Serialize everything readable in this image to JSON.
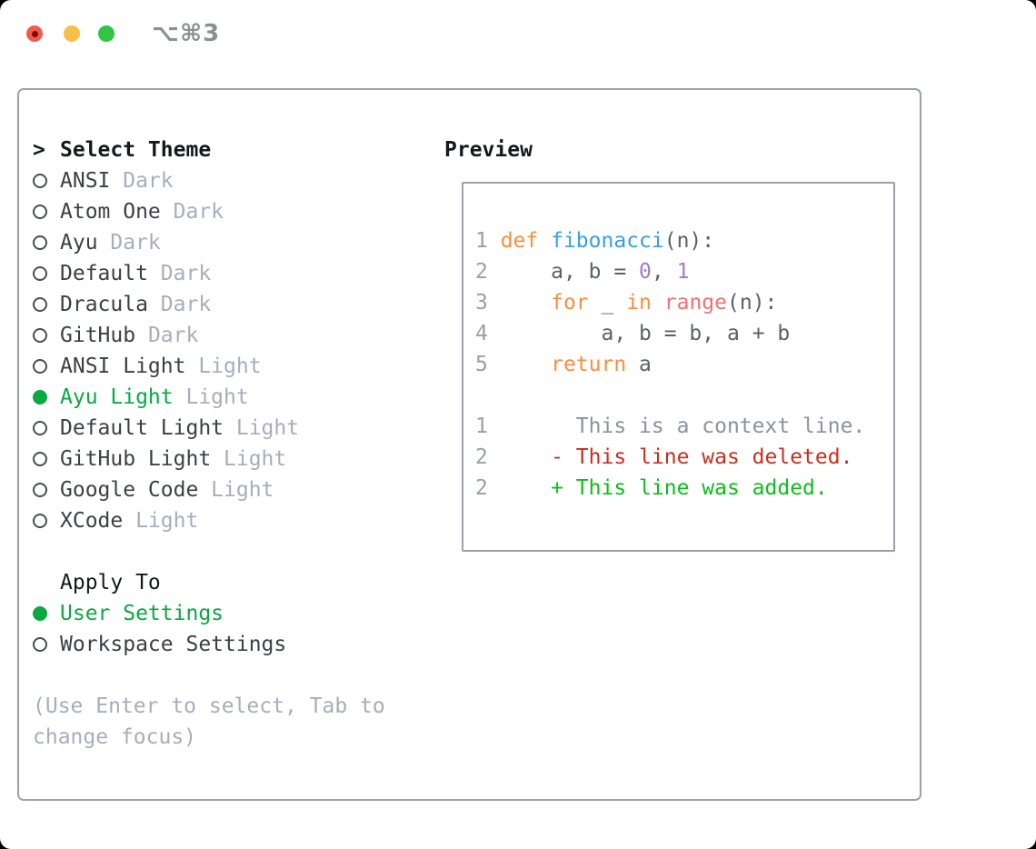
{
  "window": {
    "shortcut_label": "⌥⌘3"
  },
  "colors": {
    "tl_red": "#f05a50",
    "tl_red_dot": "#7d0c04",
    "tl_yellow": "#f5bf4a",
    "tl_green": "#30c546",
    "shortcut_gray": "#8c8f93",
    "border_gray": "#9aa2b0",
    "ring_gray": "#474d55",
    "heading_black": "#15181c",
    "text_dark": "#3b4048",
    "muted_gray": "#a6aebc",
    "accent_green": "#0ca843",
    "line_number_gray": "#96a0ab",
    "keyword_orange": "#fa8d3e",
    "function_blue": "#399ee6",
    "number_purple": "#a37acc",
    "builtin_coral": "#f07171",
    "code_plain": "#5c6166",
    "context_gray": "#8a939e",
    "deleted_red": "#c92f1f",
    "added_green": "#0cbf1c"
  },
  "theme_picker": {
    "prompt": ">",
    "title": "Select Theme",
    "items": [
      {
        "name": "ANSI",
        "variant": "Dark",
        "selected": false
      },
      {
        "name": "Atom One",
        "variant": "Dark",
        "selected": false
      },
      {
        "name": "Ayu",
        "variant": "Dark",
        "selected": false
      },
      {
        "name": "Default",
        "variant": "Dark",
        "selected": false
      },
      {
        "name": "Dracula",
        "variant": "Dark",
        "selected": false
      },
      {
        "name": "GitHub",
        "variant": "Dark",
        "selected": false
      },
      {
        "name": "ANSI Light",
        "variant": "Light",
        "selected": false
      },
      {
        "name": "Ayu Light",
        "variant": "Light",
        "selected": true
      },
      {
        "name": "Default Light",
        "variant": "Light",
        "selected": false
      },
      {
        "name": "GitHub Light",
        "variant": "Light",
        "selected": false
      },
      {
        "name": "Google Code",
        "variant": "Light",
        "selected": false
      },
      {
        "name": "XCode",
        "variant": "Light",
        "selected": false
      }
    ],
    "apply_to": {
      "label": "Apply To",
      "options": [
        {
          "label": "User Settings",
          "selected": true
        },
        {
          "label": "Workspace Settings",
          "selected": false
        }
      ]
    },
    "hint": "(Use Enter to select, Tab to change focus)"
  },
  "preview": {
    "title": "Preview",
    "lines": [
      {
        "segments": [
          {
            "c": "ln",
            "t": "1 "
          },
          {
            "c": "kw",
            "t": "def"
          },
          {
            "c": "pl",
            "t": " "
          },
          {
            "c": "fn",
            "t": "fibonacci"
          },
          {
            "c": "pl",
            "t": "(n):"
          }
        ]
      },
      {
        "segments": [
          {
            "c": "ln",
            "t": "2 "
          },
          {
            "c": "pl",
            "t": "    a, b = "
          },
          {
            "c": "num",
            "t": "0"
          },
          {
            "c": "pl",
            "t": ", "
          },
          {
            "c": "num",
            "t": "1"
          }
        ]
      },
      {
        "segments": [
          {
            "c": "ln",
            "t": "3 "
          },
          {
            "c": "pl",
            "t": "    "
          },
          {
            "c": "kw",
            "t": "for"
          },
          {
            "c": "pl",
            "t": " _ "
          },
          {
            "c": "kw",
            "t": "in"
          },
          {
            "c": "pl",
            "t": " "
          },
          {
            "c": "bi",
            "t": "range"
          },
          {
            "c": "pl",
            "t": "(n):"
          }
        ]
      },
      {
        "segments": [
          {
            "c": "ln",
            "t": "4 "
          },
          {
            "c": "pl",
            "t": "        a, b = b, a + b"
          }
        ]
      },
      {
        "segments": [
          {
            "c": "ln",
            "t": "5 "
          },
          {
            "c": "pl",
            "t": "    "
          },
          {
            "c": "kw",
            "t": "return"
          },
          {
            "c": "pl",
            "t": " a"
          }
        ]
      },
      {
        "segments": []
      },
      {
        "segments": [
          {
            "c": "ln",
            "t": "1 "
          },
          {
            "c": "ctx",
            "t": "      This is a context line."
          }
        ]
      },
      {
        "segments": [
          {
            "c": "ln",
            "t": "2 "
          },
          {
            "c": "del",
            "t": "    - This line was deleted."
          }
        ]
      },
      {
        "segments": [
          {
            "c": "ln",
            "t": "2 "
          },
          {
            "c": "add",
            "t": "    + This line was added."
          }
        ]
      }
    ]
  }
}
